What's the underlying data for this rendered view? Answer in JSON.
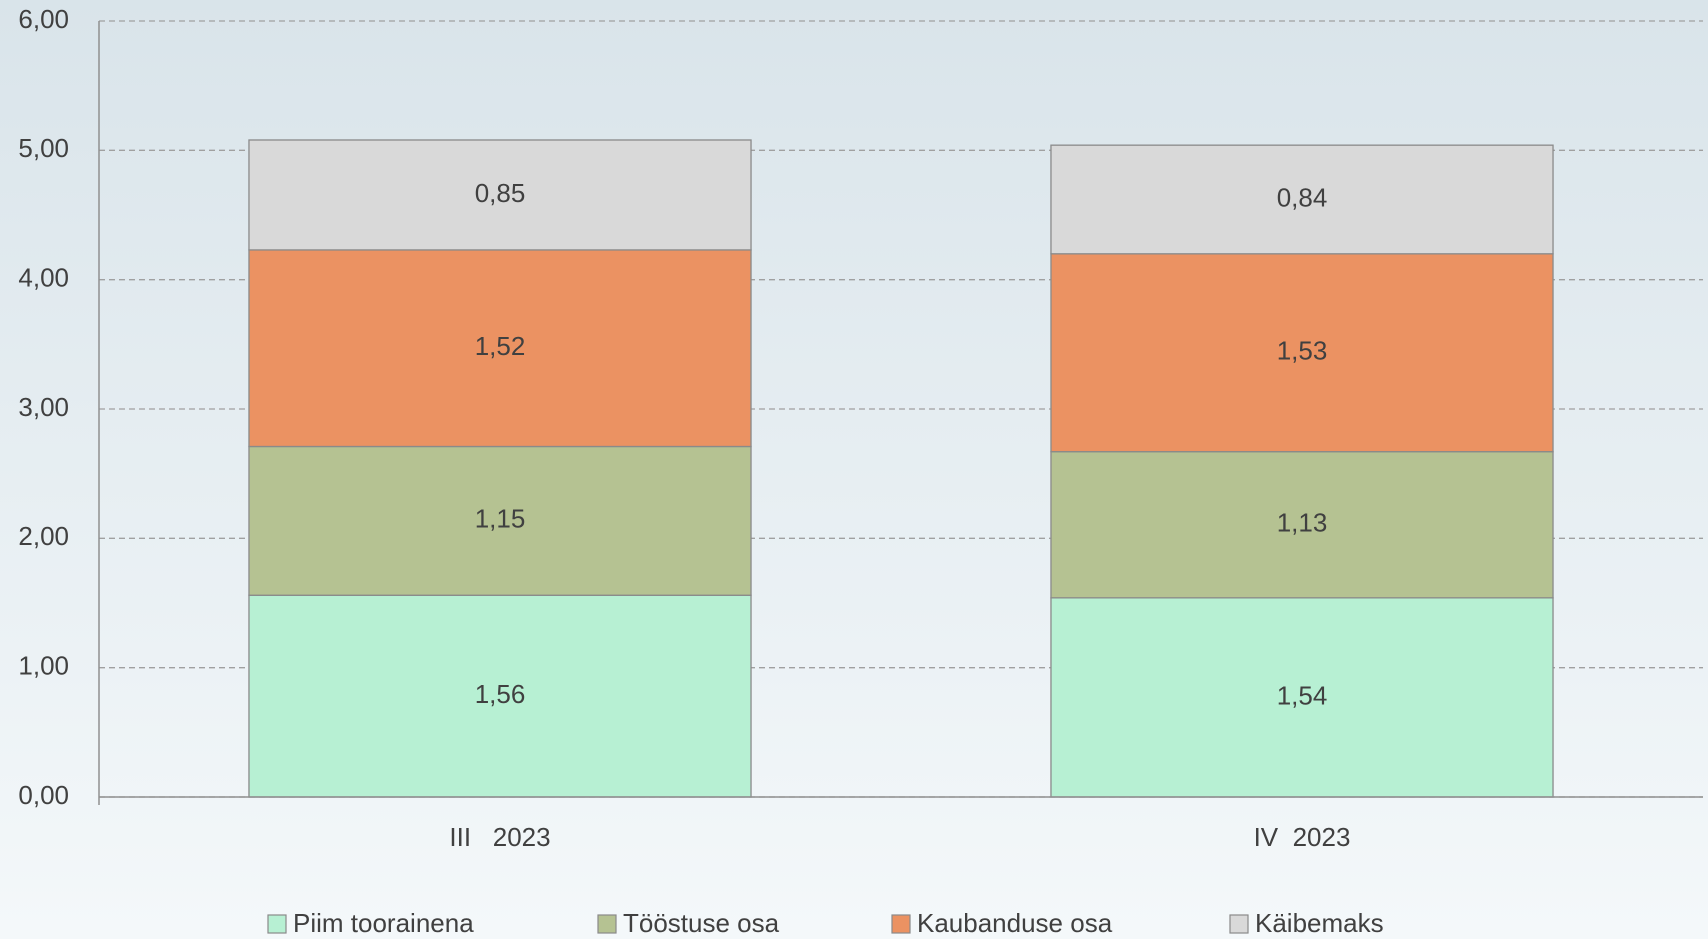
{
  "chart_data": {
    "type": "stacked_bar",
    "categories": [
      "III   2023",
      "IV  2023"
    ],
    "series": [
      {
        "name": "Piim toorainena",
        "color": "#b7f0d3",
        "values": [
          1.56,
          1.54
        ],
        "value_labels": [
          "1,56",
          "1,54"
        ]
      },
      {
        "name": "Tööstuse osa",
        "color": "#b5c292",
        "values": [
          1.15,
          1.13
        ],
        "value_labels": [
          "1,15",
          "1,13"
        ]
      },
      {
        "name": "Kaubanduse osa",
        "color": "#eb9262",
        "values": [
          1.52,
          1.53
        ],
        "value_labels": [
          "1,52",
          "1,53"
        ]
      },
      {
        "name": "Käibemaks",
        "color": "#d9d9d9",
        "values": [
          0.85,
          0.84
        ],
        "value_labels": [
          "0,85",
          "0,84"
        ]
      }
    ],
    "ylim": [
      0,
      6
    ],
    "yticks": [
      {
        "value": 0,
        "label": "0,00"
      },
      {
        "value": 1,
        "label": "1,00"
      },
      {
        "value": 2,
        "label": "2,00"
      },
      {
        "value": 3,
        "label": "3,00"
      },
      {
        "value": 4,
        "label": "4,00"
      },
      {
        "value": 5,
        "label": "5,00"
      },
      {
        "value": 6,
        "label": "6,00"
      }
    ],
    "grid": true,
    "legend": "bottom"
  }
}
